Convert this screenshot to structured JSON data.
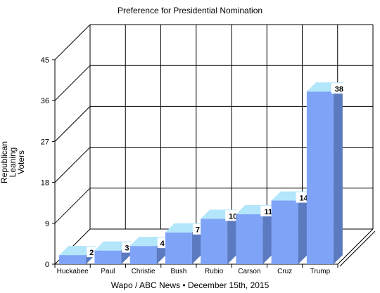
{
  "chart_data": {
    "type": "bar",
    "title": "Preference for Presidential Nomination",
    "ylabel": "Republican Leaning Voters",
    "ylabel_lines": [
      "Republican",
      "Leaning",
      "Voters"
    ],
    "footer": "Wapo / ABC News • December 15th, 2015",
    "categories": [
      "Huckabee",
      "Paul",
      "Christie",
      "Bush",
      "Rubio",
      "Carson",
      "Cruz",
      "Trump"
    ],
    "values": [
      2,
      3,
      4,
      7,
      10,
      11,
      14,
      38
    ],
    "ylim": [
      0,
      45
    ],
    "yticks": [
      "0",
      "9",
      "18",
      "27",
      "36",
      "45"
    ],
    "grid": true,
    "style": "3d",
    "colors": {
      "bar_front": "#7fa3f7",
      "bar_top": "#b3e6fb",
      "bar_side": "#5b7ac0"
    }
  }
}
